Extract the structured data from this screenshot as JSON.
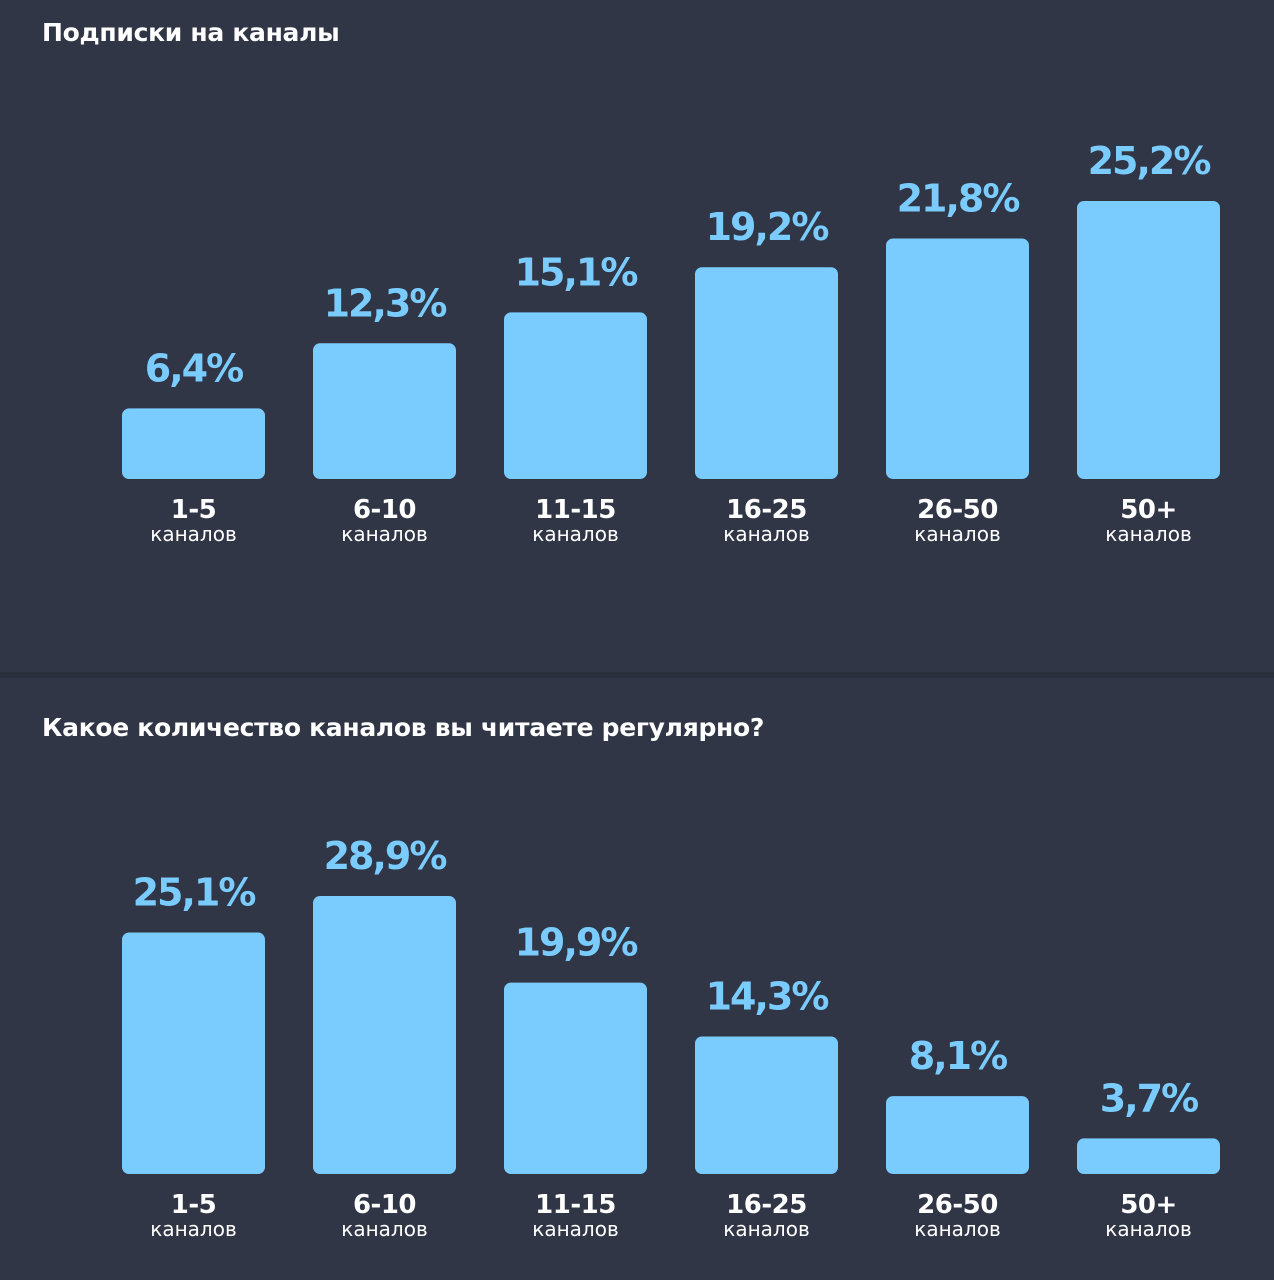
{
  "colors": {
    "background": "#303645",
    "bar": "#7acbfe",
    "value_text": "#7acbfe",
    "label_text": "#ffffff"
  },
  "chart_data": [
    {
      "type": "bar",
      "title": "Подписки на каналы",
      "categories": [
        "1-5",
        "6-10",
        "11-15",
        "16-25",
        "26-50",
        "50+"
      ],
      "category_unit": "каналов",
      "values": [
        6.4,
        12.3,
        15.1,
        19.2,
        21.8,
        25.2
      ],
      "value_labels": [
        "6,4%",
        "12,3%",
        "15,1%",
        "19,2%",
        "21,8%",
        "25,2%"
      ],
      "ylim": [
        0,
        25.2
      ],
      "grid": false,
      "legend": "none"
    },
    {
      "type": "bar",
      "title": "Какое количество каналов вы читаете регулярно?",
      "categories": [
        "1-5",
        "6-10",
        "11-15",
        "16-25",
        "26-50",
        "50+"
      ],
      "category_unit": "каналов",
      "values": [
        25.1,
        28.9,
        19.9,
        14.3,
        8.1,
        3.7
      ],
      "value_labels": [
        "25,1%",
        "28,9%",
        "19,9%",
        "14,3%",
        "8,1%",
        "3,7%"
      ],
      "ylim": [
        0,
        28.9
      ],
      "grid": false,
      "legend": "none"
    }
  ]
}
